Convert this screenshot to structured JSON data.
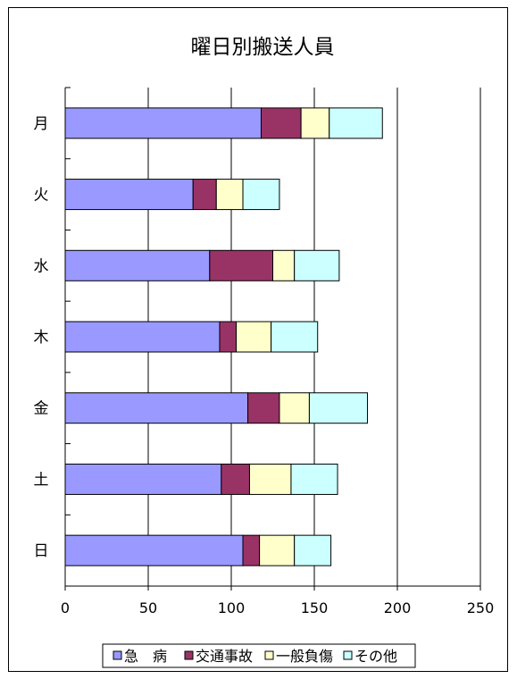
{
  "chart_data": {
    "type": "bar",
    "orientation": "horizontal",
    "stacked": true,
    "title": "曜日別搬送人員",
    "xlabel": "",
    "ylabel": "",
    "categories": [
      "月",
      "火",
      "水",
      "木",
      "金",
      "土",
      "日"
    ],
    "series": [
      {
        "name": "急　病",
        "color": "#9999ff",
        "values": [
          118,
          77,
          87,
          93,
          110,
          94,
          107
        ]
      },
      {
        "name": "交通事故",
        "color": "#993366",
        "values": [
          24,
          14,
          38,
          10,
          19,
          17,
          10
        ]
      },
      {
        "name": "一般負傷",
        "color": "#ffffcc",
        "values": [
          17,
          16,
          13,
          21,
          18,
          25,
          21
        ]
      },
      {
        "name": "その他",
        "color": "#ccffff",
        "values": [
          32,
          22,
          27,
          28,
          35,
          28,
          22
        ]
      }
    ],
    "xlim": [
      0,
      250
    ],
    "xticks": [
      0,
      50,
      100,
      150,
      200,
      250
    ],
    "grid": true,
    "legend_position": "bottom"
  }
}
